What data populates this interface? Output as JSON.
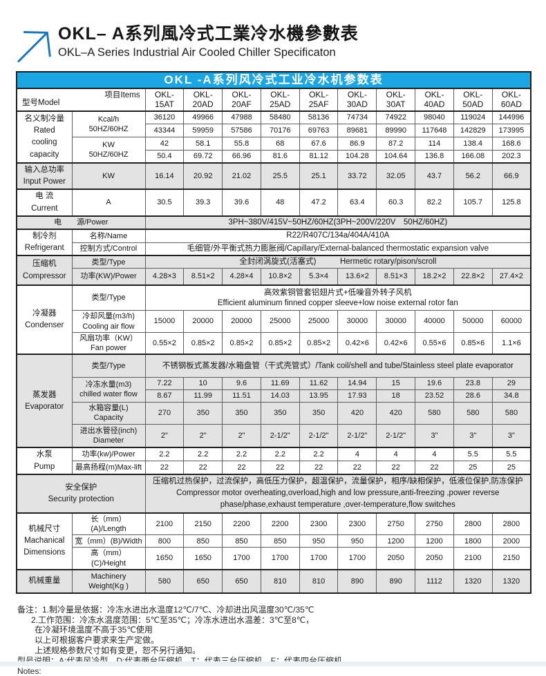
{
  "page": {
    "title_zh": "OKL– A系列風冷式工業冷水機參數表",
    "title_en": "OKL–A Series Industrial Air Cooled Chiller Specificaton"
  },
  "colors": {
    "accent_blue": "#1ca6e3",
    "row_gray": "#e3e3e3",
    "logo_blue": "#1b75bb"
  },
  "table": {
    "title": "OKL -A系列风冷式工业冷水机参数表",
    "corner": {
      "model": "型号Model",
      "items": "项目Items"
    },
    "models": [
      "OKL-\n15AT",
      "OKL-\n20AD",
      "OKL-\n20AF",
      "OKL-\n25AD",
      "OKL-\n25AF",
      "OKL-\n30AD",
      "OKL-\n30AT",
      "OKL-\n40AD",
      "OKL-\n50AD",
      "OKL-\n60AD"
    ],
    "rows": {
      "rated_label": "名义制冷量\nRated\ncooling\ncapacity",
      "kcal_label": "Kcal/h\n50HZ/60HZ",
      "kcal_50": [
        "36120",
        "49966",
        "47988",
        "58480",
        "58136",
        "74734",
        "74922",
        "98040",
        "119024",
        "144996"
      ],
      "kcal_60": [
        "43344",
        "59959",
        "57586",
        "70176",
        "69763",
        "89681",
        "89990",
        "117648",
        "142829",
        "173995"
      ],
      "kw_label": "KW\n50HZ/60HZ",
      "kw_50": [
        "42",
        "58.1",
        "55.8",
        "68",
        "67.6",
        "86.9",
        "87.2",
        "114",
        "138.4",
        "168.6"
      ],
      "kw_60": [
        "50.4",
        "69.72",
        "66.96",
        "81.6",
        "81.12",
        "104.28",
        "104.64",
        "136.8",
        "166.08",
        "202.3"
      ],
      "input_power_label": "输入总功率\nInput Power",
      "input_power_unit": "KW",
      "input_power": [
        "16.14",
        "20.92",
        "21.02",
        "25.5",
        "25.1",
        "33.72",
        "32.05",
        "43.7",
        "56.2",
        "66.9"
      ],
      "current_label": "电 流\nCurrent",
      "current_unit": "A",
      "current": [
        "30.5",
        "39.3",
        "39.6",
        "48",
        "47.2",
        "63.4",
        "60.3",
        "82.2",
        "105.7",
        "125.8"
      ],
      "power_label": "电　　源/Power",
      "power_value": "3PH~380V/415V~50HZ/60HZ(3PH~200V/220V　50HZ/60HZ)",
      "refrigerant_label": "制冷剂\nRefrigerant",
      "refrigerant_name_label": "名称/Name",
      "refrigerant_name": "R22/R407C/134a/404A/410A",
      "refrigerant_control_label": "控制方式/Control",
      "refrigerant_control": "毛细管/外平衡式热力膨胀阀/Capillary/External-balanced thermostatic expansion valve",
      "compressor_label": "压缩机\nCompressor",
      "compressor_type_label": "类型/Type",
      "compressor_type": "全封闭涡旋式(活塞式)　　　Hermetic rotary/pison/scroll",
      "compressor_power_label": "功率(KW)/Power",
      "compressor_power": [
        "4.28×3",
        "8.51×2",
        "4.28×4",
        "10.8×2",
        "5.3×4",
        "13.6×2",
        "8.51×3",
        "18.2×2",
        "22.8×2",
        "27.4×2"
      ],
      "condenser_label": "冷凝器\nCondenser",
      "condenser_type_label": "类型/Type",
      "condenser_type": "高效紫铜管套铝翅片式+低噪音外转子风机\nEfficient aluminum finned copper sleeve+low noise external rotor fan",
      "air_flow_label": "冷却风量(m3/h)\nCooling air flow",
      "air_flow": [
        "15000",
        "20000",
        "20000",
        "25000",
        "25000",
        "30000",
        "30000",
        "40000",
        "50000",
        "60000"
      ],
      "fan_power_label": "风扇功率（KW）\nFan power",
      "fan_power": [
        "0.55×2",
        "0.85×2",
        "0.85×2",
        "0.85×2",
        "0.85×2",
        "0.42×6",
        "0.42×6",
        "0.55×6",
        "0.85×6",
        "1.1×6"
      ],
      "evaporator_label": "蒸发器\nEvaporator",
      "evap_type_label": "类型/Type",
      "evap_type": "不锈钢板式蒸发器/水箱盘管（干式壳管式）/Tank coil/shell and tube/Stainless steel plate evaporator",
      "chilled_label": "冷冻水量(m3)\nchilled water flow",
      "chilled_50": [
        "7.22",
        "10",
        "9.6",
        "11.69",
        "11.62",
        "14.94",
        "15",
        "19.6",
        "23.8",
        "29"
      ],
      "chilled_60": [
        "8.67",
        "11.99",
        "11.51",
        "14.03",
        "13.95",
        "17.93",
        "18",
        "23.52",
        "28.6",
        "34.8"
      ],
      "capacity_label": "水箱容量(L)\nCapacity",
      "capacity": [
        "270",
        "350",
        "350",
        "350",
        "350",
        "420",
        "420",
        "580",
        "580",
        "580"
      ],
      "diameter_label": "进出水管径(inch)\nDiameter",
      "diameter": [
        "2\"",
        "2\"",
        "2\"",
        "2-1/2\"",
        "2-1/2\"",
        "2-1/2\"",
        "2-1/2\"",
        "3\"",
        "3\"",
        "3\""
      ],
      "pump_label": "水泵\nPump",
      "pump_power_label": "功率(kw)/Power",
      "pump_power": [
        "2.2",
        "2.2",
        "2.2",
        "2.2",
        "2.2",
        "4",
        "4",
        "4",
        "5.5",
        "5.5"
      ],
      "max_lift_label": "最高扬程(m)Max-lift",
      "max_lift": [
        "22",
        "22",
        "22",
        "22",
        "22",
        "22",
        "22",
        "22",
        "25",
        "25"
      ],
      "security_label": "安全保护\nSecurity protection",
      "security_text": "压缩机过热保护，过流保护，高低压力保护，超温保护，流量保护，相序/缺相保护，低液位保护,防冻保护\nCompressor motor overheating,overload,high and low pressure,anti-freezing ,power reverse phase/phase,exhaust temperature ,over-temperature,flow switches",
      "dims_label": "机械尺寸\nMachanical\nDimensions",
      "length_label": "长（mm）(A)/Length",
      "length": [
        "2100",
        "2150",
        "2200",
        "2200",
        "2300",
        "2300",
        "2750",
        "2750",
        "2800",
        "2800"
      ],
      "width_label": "宽（mm）(B)/Width",
      "width": [
        "800",
        "850",
        "850",
        "850",
        "950",
        "950",
        "1200",
        "1200",
        "1800",
        "2000"
      ],
      "height_label": "高（mm）(C)/Height",
      "height": [
        "1650",
        "1650",
        "1700",
        "1700",
        "1700",
        "1700",
        "2050",
        "2050",
        "2100",
        "2150"
      ],
      "weight_label": "机械重量",
      "weight_unit_label": "Machinery\nWeight(Kg )",
      "weight": [
        "580",
        "650",
        "650",
        "810",
        "810",
        "890",
        "890",
        "1112",
        "1320",
        "1320"
      ]
    }
  },
  "notes": [
    "备注：1.制冷量是依据：冷冻水进出水温度12℃/7℃、冷却进出风温度30℃/35℃",
    "2.工作范围：冷冻水温度范围：5℃至35℃；冷冻水进出水温差：3℃至8℃，",
    "在冷凝环境温度不高于35℃使用",
    "以上可根据客户要求来生产定做。",
    "上述规格参数尺寸如有变更，恕不另行通知。",
    "型号说明：A:代表风冷型，D:代表两台压缩机，T：代表三台压缩机，F：代表四台压缩机。",
    "Notes:"
  ]
}
